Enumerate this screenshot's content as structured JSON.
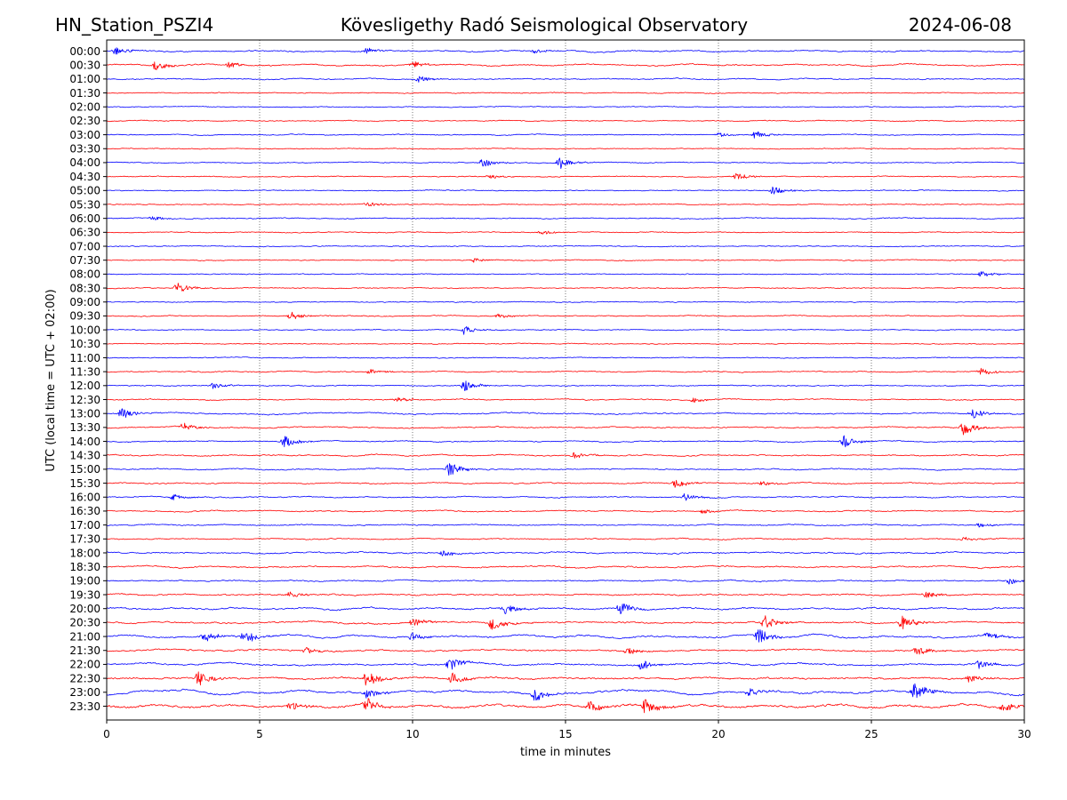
{
  "chart_data": {
    "type": "line",
    "title_left": "HN_Station_PSZI4",
    "title_center": "Kövesligethy Radó Seismological Observatory",
    "title_right": "2024-06-08",
    "xlabel": "time in minutes",
    "ylabel": "UTC (local time = UTC + 02:00)",
    "xlim": [
      0,
      30
    ],
    "xticks": [
      "0",
      "5",
      "10",
      "15",
      "20",
      "25",
      "30"
    ],
    "xtick_values": [
      0,
      5,
      10,
      15,
      20,
      25,
      30
    ],
    "grid": "vertical-dotted",
    "colors": {
      "even_rows": "#0000ff",
      "odd_rows": "#ff0000",
      "grid": "#555555",
      "frame": "#000000"
    },
    "rows": [
      {
        "label": "00:00",
        "activity": 0.28,
        "bursts": [
          [
            0.3,
            0.5
          ],
          [
            8.5,
            0.4
          ],
          [
            14,
            0.3
          ]
        ]
      },
      {
        "label": "00:30",
        "activity": 0.3,
        "bursts": [
          [
            1.6,
            0.6
          ],
          [
            4.0,
            0.4
          ],
          [
            10.0,
            0.4
          ]
        ]
      },
      {
        "label": "01:00",
        "activity": 0.18,
        "bursts": [
          [
            10.2,
            0.4
          ]
        ]
      },
      {
        "label": "01:30",
        "activity": 0.16,
        "bursts": []
      },
      {
        "label": "02:00",
        "activity": 0.12,
        "bursts": []
      },
      {
        "label": "02:30",
        "activity": 0.1,
        "bursts": []
      },
      {
        "label": "03:00",
        "activity": 0.12,
        "bursts": [
          [
            21.2,
            0.5
          ],
          [
            20.0,
            0.3
          ]
        ]
      },
      {
        "label": "03:30",
        "activity": 0.1,
        "bursts": []
      },
      {
        "label": "04:00",
        "activity": 0.14,
        "bursts": [
          [
            12.3,
            0.6
          ],
          [
            14.8,
            0.8
          ]
        ]
      },
      {
        "label": "04:30",
        "activity": 0.12,
        "bursts": [
          [
            12.5,
            0.3
          ],
          [
            20.6,
            0.5
          ]
        ]
      },
      {
        "label": "05:00",
        "activity": 0.14,
        "bursts": [
          [
            21.8,
            0.6
          ]
        ]
      },
      {
        "label": "05:30",
        "activity": 0.12,
        "bursts": [
          [
            8.5,
            0.3
          ]
        ]
      },
      {
        "label": "06:00",
        "activity": 0.14,
        "bursts": [
          [
            1.5,
            0.3
          ]
        ]
      },
      {
        "label": "06:30",
        "activity": 0.13,
        "bursts": [
          [
            14.2,
            0.3
          ]
        ]
      },
      {
        "label": "07:00",
        "activity": 0.12,
        "bursts": []
      },
      {
        "label": "07:30",
        "activity": 0.12,
        "bursts": [
          [
            12.0,
            0.3
          ]
        ]
      },
      {
        "label": "08:00",
        "activity": 0.12,
        "bursts": [
          [
            28.6,
            0.4
          ]
        ]
      },
      {
        "label": "08:30",
        "activity": 0.12,
        "bursts": [
          [
            2.3,
            0.7
          ]
        ]
      },
      {
        "label": "09:00",
        "activity": 0.12,
        "bursts": []
      },
      {
        "label": "09:30",
        "activity": 0.16,
        "bursts": [
          [
            6.0,
            0.6
          ],
          [
            12.8,
            0.3
          ]
        ]
      },
      {
        "label": "10:00",
        "activity": 0.1,
        "bursts": [
          [
            11.7,
            0.6
          ]
        ]
      },
      {
        "label": "10:30",
        "activity": 0.1,
        "bursts": []
      },
      {
        "label": "11:00",
        "activity": 0.12,
        "bursts": []
      },
      {
        "label": "11:30",
        "activity": 0.16,
        "bursts": [
          [
            8.6,
            0.4
          ],
          [
            28.6,
            0.5
          ]
        ]
      },
      {
        "label": "12:00",
        "activity": 0.16,
        "bursts": [
          [
            3.5,
            0.4
          ],
          [
            11.7,
            0.7
          ]
        ]
      },
      {
        "label": "12:30",
        "activity": 0.2,
        "bursts": [
          [
            9.5,
            0.4
          ],
          [
            19.2,
            0.3
          ]
        ]
      },
      {
        "label": "13:00",
        "activity": 0.3,
        "bursts": [
          [
            0.5,
            0.7
          ],
          [
            28.3,
            0.7
          ]
        ]
      },
      {
        "label": "13:30",
        "activity": 0.26,
        "bursts": [
          [
            2.5,
            0.5
          ],
          [
            28.0,
            0.9
          ]
        ]
      },
      {
        "label": "14:00",
        "activity": 0.2,
        "bursts": [
          [
            5.8,
            0.8
          ],
          [
            24.1,
            0.8
          ]
        ]
      },
      {
        "label": "14:30",
        "activity": 0.24,
        "bursts": [
          [
            15.3,
            0.5
          ]
        ]
      },
      {
        "label": "15:00",
        "activity": 0.24,
        "bursts": [
          [
            11.2,
            1.0
          ]
        ]
      },
      {
        "label": "15:30",
        "activity": 0.24,
        "bursts": [
          [
            18.6,
            0.6
          ],
          [
            21.4,
            0.3
          ]
        ]
      },
      {
        "label": "16:00",
        "activity": 0.2,
        "bursts": [
          [
            2.2,
            0.4
          ],
          [
            18.9,
            0.5
          ]
        ]
      },
      {
        "label": "16:30",
        "activity": 0.22,
        "bursts": [
          [
            19.5,
            0.3
          ]
        ]
      },
      {
        "label": "17:00",
        "activity": 0.24,
        "bursts": [
          [
            28.5,
            0.3
          ]
        ]
      },
      {
        "label": "17:30",
        "activity": 0.26,
        "bursts": [
          [
            28.0,
            0.3
          ]
        ]
      },
      {
        "label": "18:00",
        "activity": 0.36,
        "bursts": [
          [
            11.0,
            0.4
          ]
        ]
      },
      {
        "label": "18:30",
        "activity": 0.38,
        "bursts": []
      },
      {
        "label": "19:00",
        "activity": 0.28,
        "bursts": [
          [
            29.5,
            0.4
          ]
        ]
      },
      {
        "label": "19:30",
        "activity": 0.4,
        "bursts": [
          [
            6.0,
            0.5
          ],
          [
            26.8,
            0.5
          ]
        ]
      },
      {
        "label": "20:00",
        "activity": 0.52,
        "bursts": [
          [
            13.0,
            0.7
          ],
          [
            16.8,
            0.8
          ]
        ]
      },
      {
        "label": "20:30",
        "activity": 0.5,
        "bursts": [
          [
            10.0,
            0.6
          ],
          [
            12.6,
            0.9
          ],
          [
            21.5,
            0.9
          ],
          [
            26.0,
            0.9
          ]
        ]
      },
      {
        "label": "21:00",
        "activity": 0.55,
        "bursts": [
          [
            3.2,
            0.8
          ],
          [
            4.5,
            0.9
          ],
          [
            10.0,
            0.5
          ],
          [
            21.3,
            1.0
          ],
          [
            28.8,
            0.5
          ]
        ]
      },
      {
        "label": "21:30",
        "activity": 0.44,
        "bursts": [
          [
            6.5,
            0.5
          ],
          [
            17.0,
            0.5
          ],
          [
            26.5,
            0.7
          ]
        ]
      },
      {
        "label": "22:00",
        "activity": 0.5,
        "bursts": [
          [
            11.2,
            0.9
          ],
          [
            17.5,
            0.6
          ],
          [
            28.5,
            0.6
          ]
        ]
      },
      {
        "label": "22:30",
        "activity": 0.62,
        "bursts": [
          [
            3.0,
            1.0
          ],
          [
            8.5,
            1.2
          ],
          [
            11.3,
            0.7
          ],
          [
            28.2,
            0.5
          ]
        ]
      },
      {
        "label": "23:00",
        "activity": 0.65,
        "bursts": [
          [
            8.5,
            0.6
          ],
          [
            14.0,
            0.8
          ],
          [
            21.0,
            0.6
          ],
          [
            26.4,
            1.3
          ]
        ]
      },
      {
        "label": "23:30",
        "activity": 0.85,
        "bursts": [
          [
            6.0,
            0.6
          ],
          [
            8.5,
            0.9
          ],
          [
            15.8,
            0.8
          ],
          [
            17.6,
            0.9
          ],
          [
            29.3,
            0.7
          ]
        ]
      }
    ]
  }
}
